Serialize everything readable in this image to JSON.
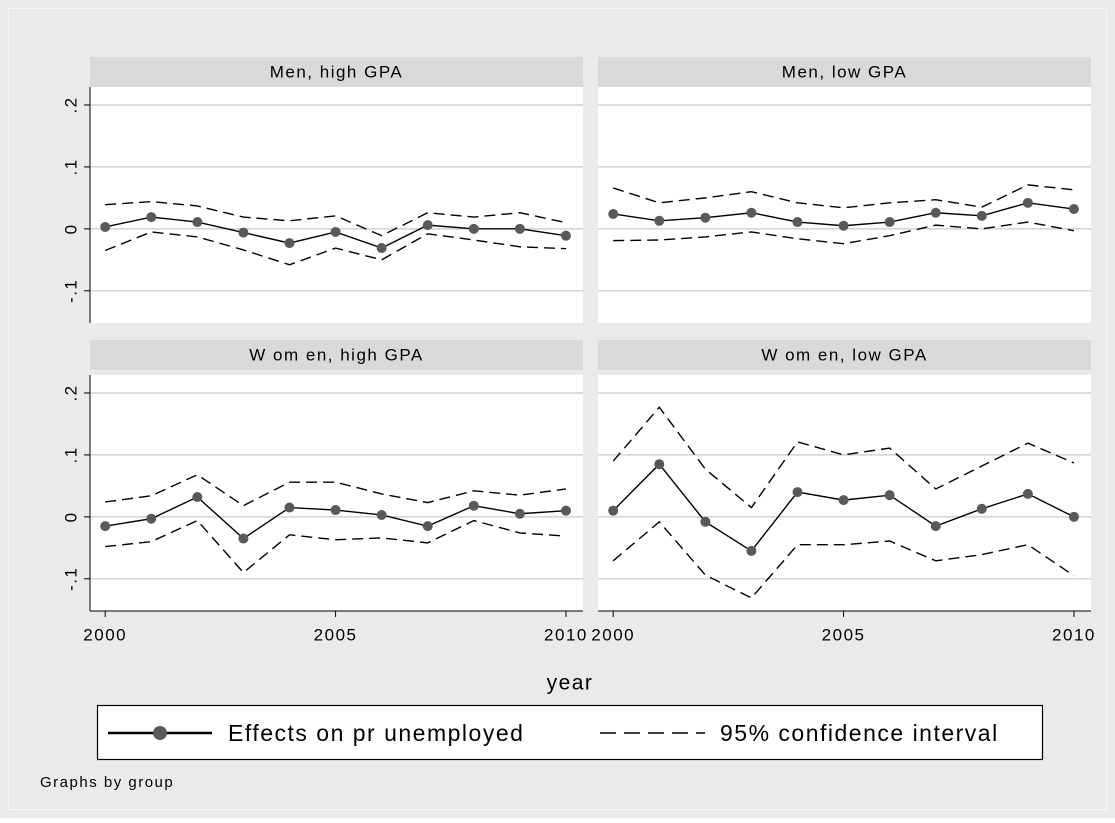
{
  "chart_data": {
    "type": "line",
    "x": [
      2000,
      2001,
      2002,
      2003,
      2004,
      2005,
      2006,
      2007,
      2008,
      2009,
      2010
    ],
    "xlim": [
      1999.67,
      2010.37
    ],
    "xticks": [
      2000,
      2005,
      2010
    ],
    "ylim": [
      -0.152,
      0.229
    ],
    "yticks": [
      {
        "value": -0.1,
        "label": "-.1"
      },
      0,
      {
        "value": 0.1,
        "label": ".1"
      },
      {
        "value": 0.2,
        "label": ".2"
      }
    ],
    "grid": true,
    "xlabel": "year",
    "note": "Graphs by group",
    "series": [
      {
        "name": "Effects on pr unemployed",
        "color": "#000000",
        "marker_color": "#595959"
      },
      {
        "name": "95% confidence interval",
        "color": "#000000"
      }
    ],
    "panels": [
      {
        "title": "Men, high GPA",
        "values": [
          0.003,
          0.019,
          0.011,
          -0.006,
          -0.023,
          -0.005,
          -0.031,
          0.006,
          0,
          0,
          -0.011
        ],
        "upper": [
          0.039,
          0.044,
          0.037,
          0.019,
          0.013,
          0.021,
          -0.011,
          0.026,
          0.019,
          0.026,
          0.01
        ],
        "lower": [
          -0.035,
          -0.005,
          -0.013,
          -0.034,
          -0.058,
          -0.031,
          -0.05,
          -0.008,
          -0.018,
          -0.029,
          -0.032
        ]
      },
      {
        "title": "Men, low GPA",
        "values": [
          0.024,
          0.013,
          0.018,
          0.026,
          0.011,
          0.005,
          0.011,
          0.026,
          0.021,
          0.042,
          0.032
        ],
        "upper": [
          0.066,
          0.042,
          0.05,
          0.06,
          0.042,
          0.034,
          0.042,
          0.047,
          0.035,
          0.071,
          0.063
        ],
        "lower": [
          -0.019,
          -0.018,
          -0.013,
          -0.005,
          -0.016,
          -0.024,
          -0.011,
          0.006,
          0,
          0.011,
          -0.003
        ]
      },
      {
        "title": "W om en, high GPA",
        "values": [
          -0.015,
          -0.003,
          0.032,
          -0.035,
          0.015,
          0.011,
          0.003,
          -0.015,
          0.018,
          0.005,
          0.01
        ],
        "upper": [
          0.024,
          0.034,
          0.068,
          0.018,
          0.056,
          0.056,
          0.037,
          0.023,
          0.042,
          0.035,
          0.045
        ],
        "lower": [
          -0.048,
          -0.04,
          -0.006,
          -0.09,
          -0.029,
          -0.037,
          -0.034,
          -0.042,
          -0.006,
          -0.026,
          -0.031
        ]
      },
      {
        "title": "W om en, low GPA",
        "values": [
          0.01,
          0.085,
          -0.008,
          -0.055,
          0.04,
          0.027,
          0.035,
          -0.015,
          0.013,
          0.037,
          0
        ],
        "upper": [
          0.09,
          0.177,
          0.077,
          0.015,
          0.121,
          0.1,
          0.111,
          0.045,
          0.082,
          0.119,
          0.087
        ],
        "lower": [
          -0.071,
          -0.008,
          -0.094,
          -0.131,
          -0.045,
          -0.045,
          -0.039,
          -0.071,
          -0.061,
          -0.045,
          -0.095
        ]
      }
    ]
  }
}
